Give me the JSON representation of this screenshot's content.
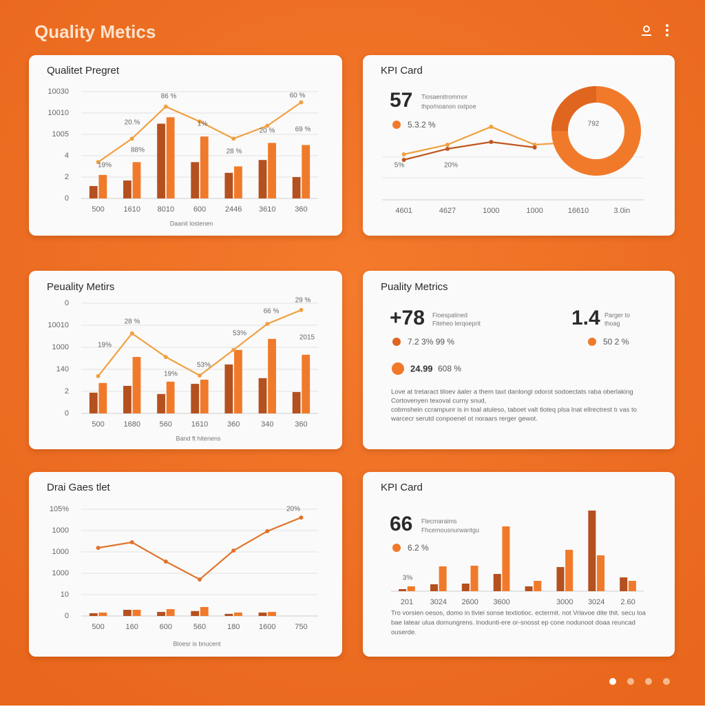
{
  "header": {
    "title": "Quality Metics"
  },
  "cards": [
    {
      "title": "Qualitet Pregret",
      "chart": {
        "type": "bar",
        "categories": [
          "500",
          "1610",
          "8010",
          "600",
          "2446",
          "3610",
          "360"
        ],
        "ylim": [
          0,
          5
        ],
        "yticks": [
          0,
          {
            "value": 1,
            "label": "2"
          },
          {
            "value": 2,
            "label": "4"
          },
          {
            "value": 3,
            "label": "1005"
          },
          {
            "value": 4,
            "label": "10010"
          },
          {
            "value": 5,
            "label": "10030"
          }
        ],
        "grid": true,
        "x_label": "Daanit lostenen",
        "series": [
          {
            "type": "bar",
            "color": "#b5501f",
            "values": [
              0.58,
              0.84,
              3.5,
              1.7,
              1.2,
              1.8,
              1.0
            ]
          },
          {
            "type": "bar",
            "color": "#f07a2a",
            "values": [
              1.1,
              1.7,
              3.8,
              2.9,
              1.5,
              2.6,
              2.5
            ]
          },
          {
            "type": "line",
            "color": "#f0a040",
            "values": [
              1.7,
              2.8,
              4.3,
              3.6,
              2.8,
              3.4,
              4.5
            ]
          }
        ],
        "annotations": [
          "19%",
          "20.%",
          "88%",
          "86 %",
          "1%",
          "28 %",
          "20 %",
          "60 %",
          "69 %"
        ]
      }
    },
    {
      "title": "KPI Card",
      "kpi": {
        "value": "57",
        "caption": [
          "Tiosaenitrommor",
          "thpo/noanon oxtpoe"
        ],
        "change": "5.3.2 %"
      },
      "donut_label": "792",
      "chart": {
        "type": "line",
        "categories": [
          "4601",
          "4627",
          "1000",
          "1000",
          "16610",
          "3.0in"
        ],
        "ylim": [
          0,
          4
        ],
        "series": [
          {
            "type": "line",
            "color": "#f0a040",
            "values": [
              1.65,
              2.0,
              2.65,
              2.0,
              2.1,
              null
            ]
          },
          {
            "type": "line",
            "color": "#c0561f",
            "values": [
              1.45,
              1.85,
              2.1,
              1.9,
              null,
              null
            ]
          }
        ],
        "annotations": [
          "5%",
          "20%"
        ]
      }
    },
    {
      "title": "Peuality Metirs",
      "chart": {
        "type": "bar",
        "categories": [
          "500",
          "1680",
          "560",
          "1610",
          "360",
          "340",
          "360"
        ],
        "ylim": [
          0,
          5
        ],
        "yticks": [
          0,
          {
            "value": 1,
            "label": "2"
          },
          {
            "value": 2,
            "label": "140"
          },
          {
            "value": 3,
            "label": "1000"
          },
          {
            "value": 4,
            "label": "10010"
          },
          {
            "value": 5,
            "label": "0"
          }
        ],
        "grid": true,
        "x_label": "Band ft hitenens",
        "series": [
          {
            "type": "bar",
            "color": "#b5501f",
            "values": [
              0.94,
              1.25,
              0.88,
              1.34,
              2.22,
              1.6,
              0.97
            ]
          },
          {
            "type": "bar",
            "color": "#f07a2a",
            "values": [
              1.38,
              2.56,
              1.44,
              1.53,
              2.88,
              3.38,
              2.66
            ]
          },
          {
            "type": "line",
            "color": "#f0a040",
            "values": [
              1.69,
              3.63,
              2.56,
              1.72,
              2.88,
              4.06,
              4.69
            ]
          }
        ],
        "annotations": [
          "19%",
          "28 %",
          "19%",
          "53%",
          "53%",
          "66 %",
          "29 %",
          "2015"
        ]
      }
    },
    {
      "title": "Puality Metrics",
      "kpis": [
        {
          "value": "+78",
          "caption": [
            "Fioespalined",
            "Fiteheo lerqoeprit"
          ],
          "change": "7.2 3% 99 %"
        },
        {
          "value": "1.4",
          "caption": [
            "Parger to",
            "thoag"
          ],
          "change": "50 2 %"
        }
      ],
      "extra": {
        "value": "24.99",
        "change": "608 %"
      },
      "text": [
        "Love at tretaract tiloev áaler a them taxt danlongl odorot sodoectats raba oberlaking",
        "Cortovenyen texoval curny snud,",
        "cobmshein ccrampunr is in toal atuleso, taboet valt tloteq plsa lnat ellrectrest tı vas to",
        "warcecr serutd conpoenel ot noraars rerger gewot."
      ]
    },
    {
      "title": "Drai Gaes tlet",
      "chart": {
        "type": "bar",
        "categories": [
          "500",
          "160",
          "600",
          "560",
          "180",
          "1600",
          "750"
        ],
        "ylim": [
          0,
          5
        ],
        "yticks": [
          0,
          {
            "value": 1,
            "label": "10"
          },
          {
            "value": 2,
            "label": "1000"
          },
          {
            "value": 3,
            "label": "1000"
          },
          {
            "value": 4,
            "label": "1000"
          },
          {
            "value": 5,
            "label": "105%"
          }
        ],
        "grid": true,
        "x_label": "Bloesr is bnucent",
        "series": [
          {
            "type": "bar",
            "color": "#b5501f",
            "values": [
              0.13,
              0.29,
              0.19,
              0.23,
              0.1,
              0.16,
              null
            ]
          },
          {
            "type": "bar",
            "color": "#f07a2a",
            "values": [
              0.16,
              0.29,
              0.32,
              0.42,
              0.16,
              0.19,
              null
            ]
          },
          {
            "type": "line",
            "color": "#e0732a",
            "values": [
              3.19,
              3.45,
              2.55,
              1.71,
              3.06,
              3.97,
              4.61
            ]
          }
        ],
        "annotations": [
          "20%"
        ]
      }
    },
    {
      "title": "KPI Card",
      "kpi": {
        "value": "66",
        "caption": [
          "Flecmaraims",
          "Fhcemousnurwantgu"
        ],
        "change": "6.2 %"
      },
      "chart": {
        "type": "bar",
        "categories": [
          "201",
          "3024",
          "2600",
          "3600",
          null,
          "3000",
          "3024",
          "2.60"
        ],
        "ylim": [
          0,
          120
        ],
        "series": [
          {
            "type": "bar",
            "color": "#b5501f",
            "values": [
              3,
              10,
              11,
              25,
              7,
              35,
              117,
              20
            ]
          },
          {
            "type": "bar",
            "color": "#f07a2a",
            "values": [
              7,
              36,
              37,
              94,
              15,
              60,
              52,
              15
            ]
          }
        ],
        "annotations": [
          "3%"
        ]
      },
      "text": [
        "Tro vorsien oesos, domo in tiviei sonse textiotioc. ectermit. not Vrlavoe dite thit. secu loa",
        "bae latear ulua domungrens. lnodunti-ere or-snosst ep cone nodunoot doaa reuncad",
        "ouserde."
      ]
    }
  ]
}
